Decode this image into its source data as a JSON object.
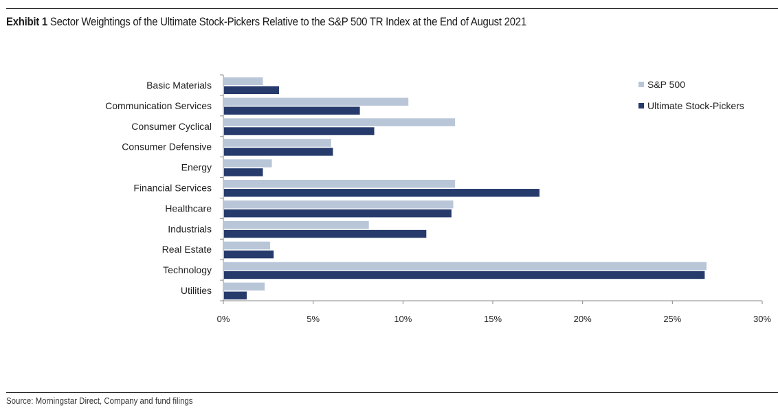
{
  "header": {
    "exhibit_label": "Exhibit 1",
    "title": "Sector Weightings of the Ultimate Stock-Pickers Relative to the S&P 500 TR Index at the End of August 2021"
  },
  "footer": {
    "source": "Source: Morningstar Direct, Company and fund filings"
  },
  "colors": {
    "sp500": "#b8c6d8",
    "ultimate": "#263b6c",
    "axis": "#888888"
  },
  "chart_data": {
    "type": "bar",
    "orientation": "horizontal",
    "title": "Exhibit 1 Sector Weightings of the Ultimate Stock-Pickers Relative to the S&P 500 TR Index at the End of August 2021",
    "xlabel": "",
    "ylabel": "",
    "xlim": [
      0,
      30
    ],
    "x_ticks": [
      0,
      5,
      10,
      15,
      20,
      25,
      30
    ],
    "x_tick_labels": [
      "0%",
      "5%",
      "10%",
      "15%",
      "20%",
      "25%",
      "30%"
    ],
    "grid": false,
    "legend_position": "top-right",
    "categories": [
      "Basic Materials",
      "Communication Services",
      "Consumer Cyclical",
      "Consumer Defensive",
      "Energy",
      "Financial Services",
      "Healthcare",
      "Industrials",
      "Real Estate",
      "Technology",
      "Utilities"
    ],
    "series": [
      {
        "name": "S&P 500",
        "values": [
          2.2,
          10.3,
          12.9,
          6.0,
          2.7,
          12.9,
          12.8,
          8.1,
          2.6,
          26.9,
          2.3
        ]
      },
      {
        "name": "Ultimate Stock-Pickers",
        "values": [
          3.1,
          7.6,
          8.4,
          6.1,
          2.2,
          17.6,
          12.7,
          11.3,
          2.8,
          26.8,
          1.3
        ]
      }
    ]
  }
}
